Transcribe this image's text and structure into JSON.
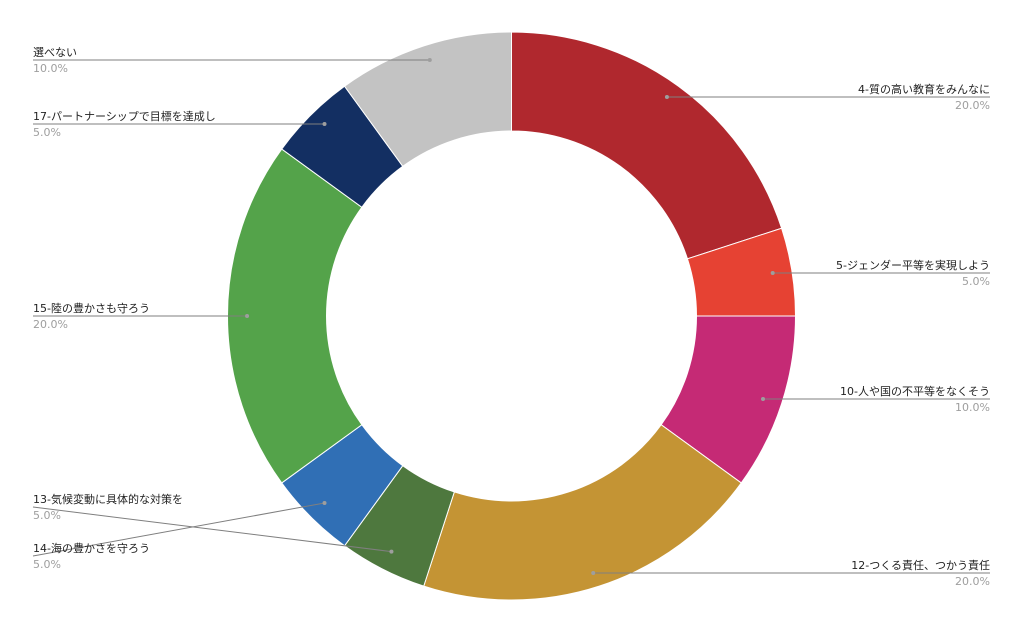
{
  "chart_data": {
    "type": "pie",
    "donut": true,
    "legend": "labels-outside",
    "slices": [
      {
        "label": "4-質の高い教育をみんなに",
        "value": 20.0,
        "percent_label": "20.0%",
        "color": "#b0282e"
      },
      {
        "label": "5-ジェンダー平等を実現しよう",
        "value": 5.0,
        "percent_label": "5.0%",
        "color": "#e64233"
      },
      {
        "label": "10-人や国の不平等をなくそう",
        "value": 10.0,
        "percent_label": "10.0%",
        "color": "#c52a75"
      },
      {
        "label": "12-つくる責任、つかう責任",
        "value": 20.0,
        "percent_label": "20.0%",
        "color": "#c49434"
      },
      {
        "label": "13-気候変動に具体的な対策を",
        "value": 5.0,
        "percent_label": "5.0%",
        "color": "#4e783e"
      },
      {
        "label": "14-海の豊かさを守ろう",
        "value": 5.0,
        "percent_label": "5.0%",
        "color": "#306fb5"
      },
      {
        "label": "15-陸の豊かさも守ろう",
        "value": 20.0,
        "percent_label": "20.0%",
        "color": "#54a34a"
      },
      {
        "label": "17-パートナーシップで目標を達成し",
        "value": 5.0,
        "percent_label": "5.0%",
        "color": "#132f62"
      },
      {
        "label": "選べない",
        "value": 10.0,
        "percent_label": "10.0%",
        "color": "#c3c3c3"
      }
    ]
  }
}
